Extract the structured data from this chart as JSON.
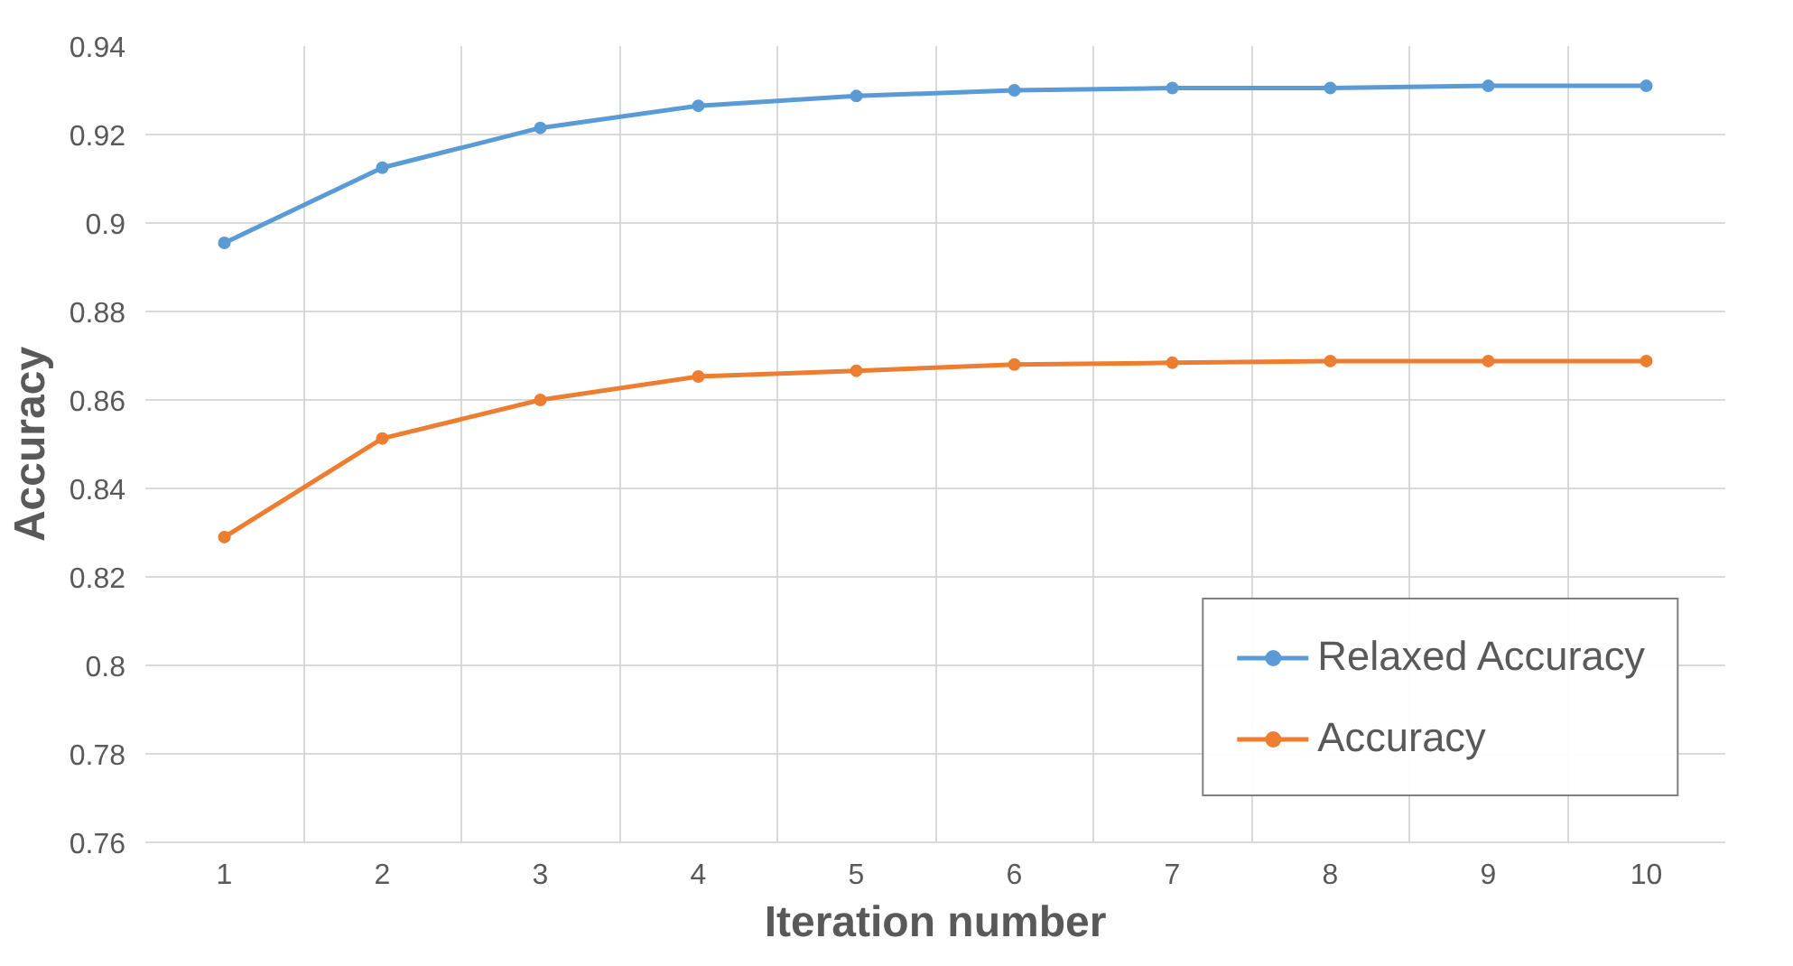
{
  "chart_data": {
    "type": "line",
    "xlabel": "Iteration number",
    "ylabel": "Accuracy",
    "categories": [
      "1",
      "2",
      "3",
      "4",
      "5",
      "6",
      "7",
      "8",
      "9",
      "10"
    ],
    "series": [
      {
        "name": "Relaxed Accuracy",
        "color": "#5b9bd5",
        "values": [
          0.8955,
          0.9125,
          0.9215,
          0.9265,
          0.9287,
          0.93,
          0.9305,
          0.9305,
          0.931,
          0.931
        ]
      },
      {
        "name": "Accuracy",
        "color": "#ed7d31",
        "values": [
          0.829,
          0.8513,
          0.86,
          0.8653,
          0.8666,
          0.868,
          0.8684,
          0.8688,
          0.8688,
          0.8688
        ]
      }
    ],
    "ylim": [
      0.76,
      0.94
    ],
    "yticks": [
      0.76,
      0.78,
      0.8,
      0.82,
      0.84,
      0.86,
      0.88,
      0.9,
      0.92,
      0.94
    ],
    "grid": true,
    "legend": "bottom right",
    "marker": "circle",
    "line_style": "solid"
  }
}
